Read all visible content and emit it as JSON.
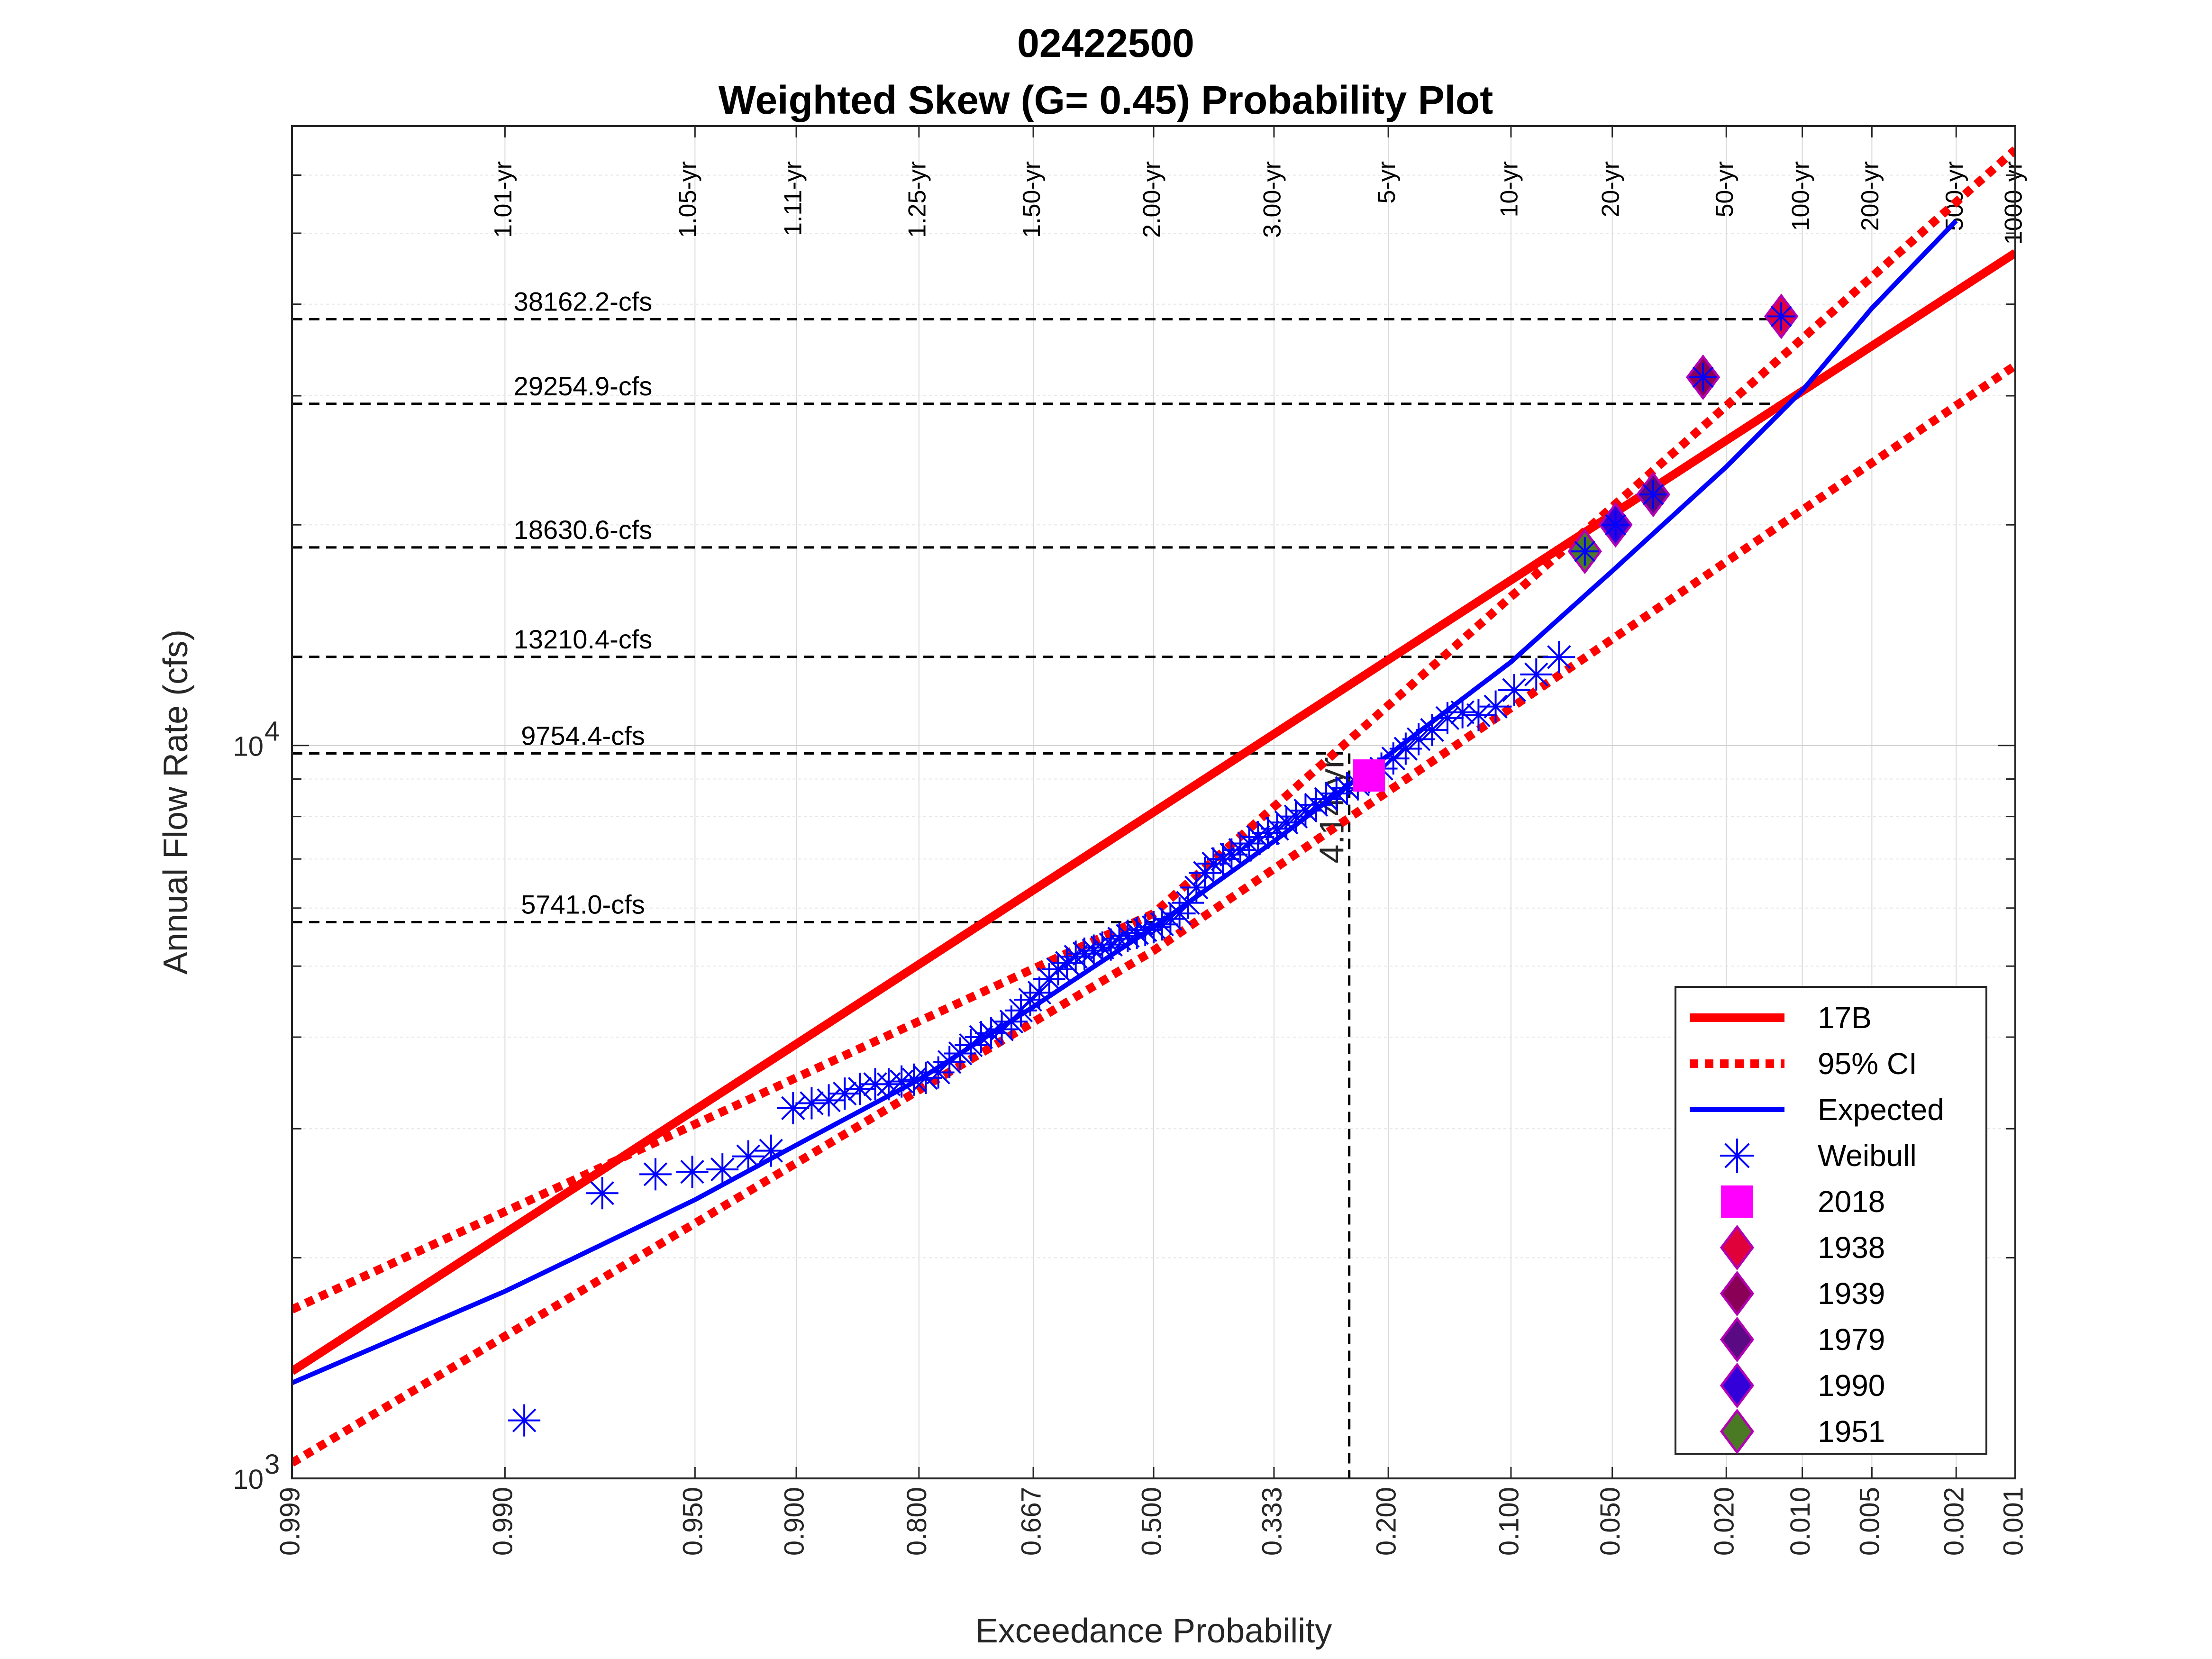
{
  "chart_data": {
    "type": "scatter",
    "title": "02422500",
    "subtitle": "Weighted Skew (G= 0.45) Probability Plot",
    "xlabel": "Exceedance Probability",
    "ylabel": "Annual Flow Rate (cfs)",
    "x_scale": "normal probability (reversed)",
    "y_scale": "log",
    "xlim": [
      0.999,
      0.001
    ],
    "ylim": [
      1000,
      70000
    ],
    "grid": true,
    "legend_position": "bottom-right",
    "x_ticks": [
      {
        "p": 0.999,
        "label": "0.999"
      },
      {
        "p": 0.99,
        "label": "0.990"
      },
      {
        "p": 0.95,
        "label": "0.950"
      },
      {
        "p": 0.9,
        "label": "0.900"
      },
      {
        "p": 0.8,
        "label": "0.800"
      },
      {
        "p": 0.667,
        "label": "0.667"
      },
      {
        "p": 0.5,
        "label": "0.500"
      },
      {
        "p": 0.333,
        "label": "0.333"
      },
      {
        "p": 0.2,
        "label": "0.200"
      },
      {
        "p": 0.1,
        "label": "0.100"
      },
      {
        "p": 0.05,
        "label": "0.050"
      },
      {
        "p": 0.02,
        "label": "0.020"
      },
      {
        "p": 0.01,
        "label": "0.010"
      },
      {
        "p": 0.005,
        "label": "0.005"
      },
      {
        "p": 0.002,
        "label": "0.002"
      },
      {
        "p": 0.001,
        "label": "0.001"
      }
    ],
    "y_ticks": [
      {
        "v": 1000,
        "base": "10",
        "exp": "3"
      },
      {
        "v": 10000,
        "base": "10",
        "exp": "4"
      }
    ],
    "return_periods": [
      {
        "p": 0.99,
        "label": "1.01-yr"
      },
      {
        "p": 0.952,
        "label": "1.05-yr"
      },
      {
        "p": 0.901,
        "label": "1.11-yr"
      },
      {
        "p": 0.8,
        "label": "1.25-yr"
      },
      {
        "p": 0.667,
        "label": "1.50-yr"
      },
      {
        "p": 0.5,
        "label": "2.00-yr"
      },
      {
        "p": 0.333,
        "label": "3.00-yr"
      },
      {
        "p": 0.2,
        "label": "5-yr"
      },
      {
        "p": 0.1,
        "label": "10-yr"
      },
      {
        "p": 0.05,
        "label": "20-yr"
      },
      {
        "p": 0.02,
        "label": "50-yr"
      },
      {
        "p": 0.01,
        "label": "100-yr"
      },
      {
        "p": 0.005,
        "label": "200-yr"
      },
      {
        "p": 0.002,
        "label": "500-yr"
      },
      {
        "p": 0.001,
        "label": "1000-yr"
      }
    ],
    "reference_flows": [
      {
        "label": "38162.2-cfs",
        "value": 38162.2,
        "p": 0.0127
      },
      {
        "label": "29254.9-cfs",
        "value": 29254.9,
        "p": 0.0127
      },
      {
        "label": "18630.6-cfs",
        "value": 18630.6,
        "p": 0.062
      },
      {
        "label": "13210.4-cfs",
        "value": 13210.4,
        "p": 0.078
      },
      {
        "label": "9754.4-cfs",
        "value": 9754.4,
        "p": 0.2415
      },
      {
        "label": "5741.0-cfs",
        "value": 5741.0,
        "p": 0.5
      }
    ],
    "event_marker": {
      "label": "4.14-yr",
      "p": 0.2415,
      "value": 9754.4
    },
    "series": [
      {
        "name": "17B",
        "kind": "line",
        "color": "#ff0000",
        "points": [
          [
            0.999,
            1400
          ],
          [
            0.001,
            47000
          ]
        ]
      },
      {
        "name": "95% CI",
        "kind": "dotted",
        "color": "#ff0000",
        "points": [
          [
            0.999,
            1700
          ],
          [
            0.5,
            5900
          ],
          [
            0.001,
            65000
          ]
        ],
        "lower": [
          [
            0.999,
            1050
          ],
          [
            0.5,
            5250
          ],
          [
            0.001,
            33000
          ]
        ]
      },
      {
        "name": "Expected",
        "kind": "line",
        "color": "#0000ff",
        "points": [
          [
            0.999,
            1350
          ],
          [
            0.99,
            1800
          ],
          [
            0.95,
            2400
          ],
          [
            0.9,
            2850
          ],
          [
            0.8,
            3500
          ],
          [
            0.667,
            4400
          ],
          [
            0.5,
            5650
          ],
          [
            0.333,
            7400
          ],
          [
            0.2,
            9700
          ],
          [
            0.1,
            13000
          ],
          [
            0.05,
            17300
          ],
          [
            0.02,
            24000
          ],
          [
            0.01,
            30500
          ],
          [
            0.005,
            39500
          ],
          [
            0.002,
            52000
          ]
        ]
      },
      {
        "name": "Weibull",
        "kind": "scatter",
        "color": "#0000ff",
        "points": [
          [
            0.988,
            1200
          ],
          [
            0.976,
            2450
          ],
          [
            0.963,
            2600
          ],
          [
            0.951,
            2620
          ],
          [
            0.939,
            2640
          ],
          [
            0.927,
            2750
          ],
          [
            0.915,
            2800
          ],
          [
            0.902,
            3200
          ],
          [
            0.89,
            3250
          ],
          [
            0.878,
            3280
          ],
          [
            0.866,
            3350
          ],
          [
            0.854,
            3400
          ],
          [
            0.841,
            3450
          ],
          [
            0.829,
            3450
          ],
          [
            0.817,
            3480
          ],
          [
            0.805,
            3500
          ],
          [
            0.793,
            3520
          ],
          [
            0.78,
            3580
          ],
          [
            0.768,
            3700
          ],
          [
            0.756,
            3800
          ],
          [
            0.744,
            3900
          ],
          [
            0.732,
            4000
          ],
          [
            0.72,
            4050
          ],
          [
            0.707,
            4100
          ],
          [
            0.695,
            4200
          ],
          [
            0.683,
            4350
          ],
          [
            0.671,
            4500
          ],
          [
            0.659,
            4600
          ],
          [
            0.646,
            4800
          ],
          [
            0.634,
            4950
          ],
          [
            0.622,
            5050
          ],
          [
            0.61,
            5150
          ],
          [
            0.598,
            5200
          ],
          [
            0.585,
            5250
          ],
          [
            0.573,
            5300
          ],
          [
            0.561,
            5350
          ],
          [
            0.549,
            5450
          ],
          [
            0.537,
            5500
          ],
          [
            0.524,
            5550
          ],
          [
            0.512,
            5600
          ],
          [
            0.5,
            5650
          ],
          [
            0.488,
            5700
          ],
          [
            0.476,
            5800
          ],
          [
            0.463,
            5900
          ],
          [
            0.451,
            6100
          ],
          [
            0.439,
            6400
          ],
          [
            0.427,
            6700
          ],
          [
            0.415,
            6900
          ],
          [
            0.402,
            7000
          ],
          [
            0.39,
            7100
          ],
          [
            0.378,
            7200
          ],
          [
            0.366,
            7350
          ],
          [
            0.354,
            7500
          ],
          [
            0.341,
            7600
          ],
          [
            0.329,
            7700
          ],
          [
            0.317,
            7850
          ],
          [
            0.305,
            8000
          ],
          [
            0.293,
            8150
          ],
          [
            0.28,
            8300
          ],
          [
            0.268,
            8450
          ],
          [
            0.256,
            8600
          ],
          [
            0.244,
            8750
          ],
          [
            0.232,
            8850
          ],
          [
            0.22,
            9050
          ],
          [
            0.207,
            9300
          ],
          [
            0.195,
            9600
          ],
          [
            0.183,
            9900
          ],
          [
            0.171,
            10200
          ],
          [
            0.159,
            10500
          ],
          [
            0.146,
            10900
          ],
          [
            0.134,
            11100
          ],
          [
            0.122,
            11000
          ],
          [
            0.11,
            11300
          ],
          [
            0.098,
            11900
          ],
          [
            0.085,
            12500
          ],
          [
            0.073,
            13200
          ]
        ]
      },
      {
        "name": "2018",
        "kind": "marker",
        "shape": "square",
        "color": "#ff00ff",
        "points": [
          [
            0.22,
            9100
          ]
        ]
      },
      {
        "name": "1938",
        "kind": "marker",
        "shape": "diamond",
        "color": "#e0003a",
        "edge": "#b400b4",
        "points": [
          [
            0.0122,
            38500
          ]
        ]
      },
      {
        "name": "1939",
        "kind": "marker",
        "shape": "diamond",
        "color": "#8b0057",
        "edge": "#b400b4",
        "points": [
          [
            0.0244,
            31800
          ]
        ]
      },
      {
        "name": "1979",
        "kind": "marker",
        "shape": "diamond",
        "color": "#5a0a82",
        "edge": "#b400b4",
        "points": [
          [
            0.0366,
            22000
          ]
        ]
      },
      {
        "name": "1990",
        "kind": "marker",
        "shape": "diamond",
        "color": "#3300d9",
        "edge": "#b400b4",
        "points": [
          [
            0.0488,
            20000
          ]
        ]
      },
      {
        "name": "1951",
        "kind": "marker",
        "shape": "diamond",
        "color": "#4a7a23",
        "edge": "#b400b4",
        "points": [
          [
            0.061,
            18400
          ]
        ]
      }
    ]
  }
}
